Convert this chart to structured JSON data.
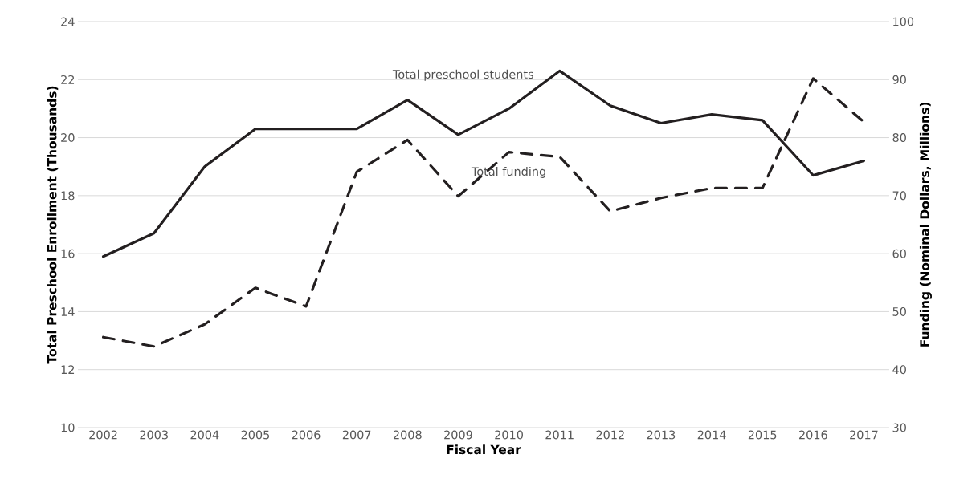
{
  "chart_data": {
    "type": "line",
    "xlabel": "Fiscal Year",
    "ylabel": "Total Preschool Enrollment (Thousands)",
    "y2label": "Funding (Nominal Dollars, Millions)",
    "categories": [
      "2002",
      "2003",
      "2004",
      "2005",
      "2006",
      "2007",
      "2008",
      "2009",
      "2010",
      "2011",
      "2012",
      "2013",
      "2014",
      "2015",
      "2016",
      "2017"
    ],
    "series": [
      {
        "name": "Total preschool students",
        "color": "#231f20",
        "line_style": "solid",
        "values": [
          15.9,
          16.7,
          19.0,
          20.3,
          20.3,
          20.3,
          21.3,
          20.1,
          21.0,
          22.3,
          21.1,
          20.5,
          20.8,
          20.6,
          18.7,
          19.2
        ]
      },
      {
        "name": "Total funding",
        "color": "#231f20",
        "line_style": "dashed",
        "axis": "y2",
        "values": [
          45.6,
          44.0,
          47.8,
          54.1,
          50.9,
          74.1,
          79.6,
          69.9,
          77.5,
          76.7,
          67.3,
          69.6,
          71.3,
          71.3,
          90.2,
          82.7
        ]
      }
    ],
    "ylim": [
      10,
      24
    ],
    "yticks": [
      10,
      12,
      14,
      16,
      18,
      20,
      22,
      24
    ],
    "y2lim": [
      30,
      100
    ],
    "y2ticks": [
      30,
      40,
      50,
      60,
      70,
      80,
      90,
      100
    ],
    "grid": "y"
  }
}
